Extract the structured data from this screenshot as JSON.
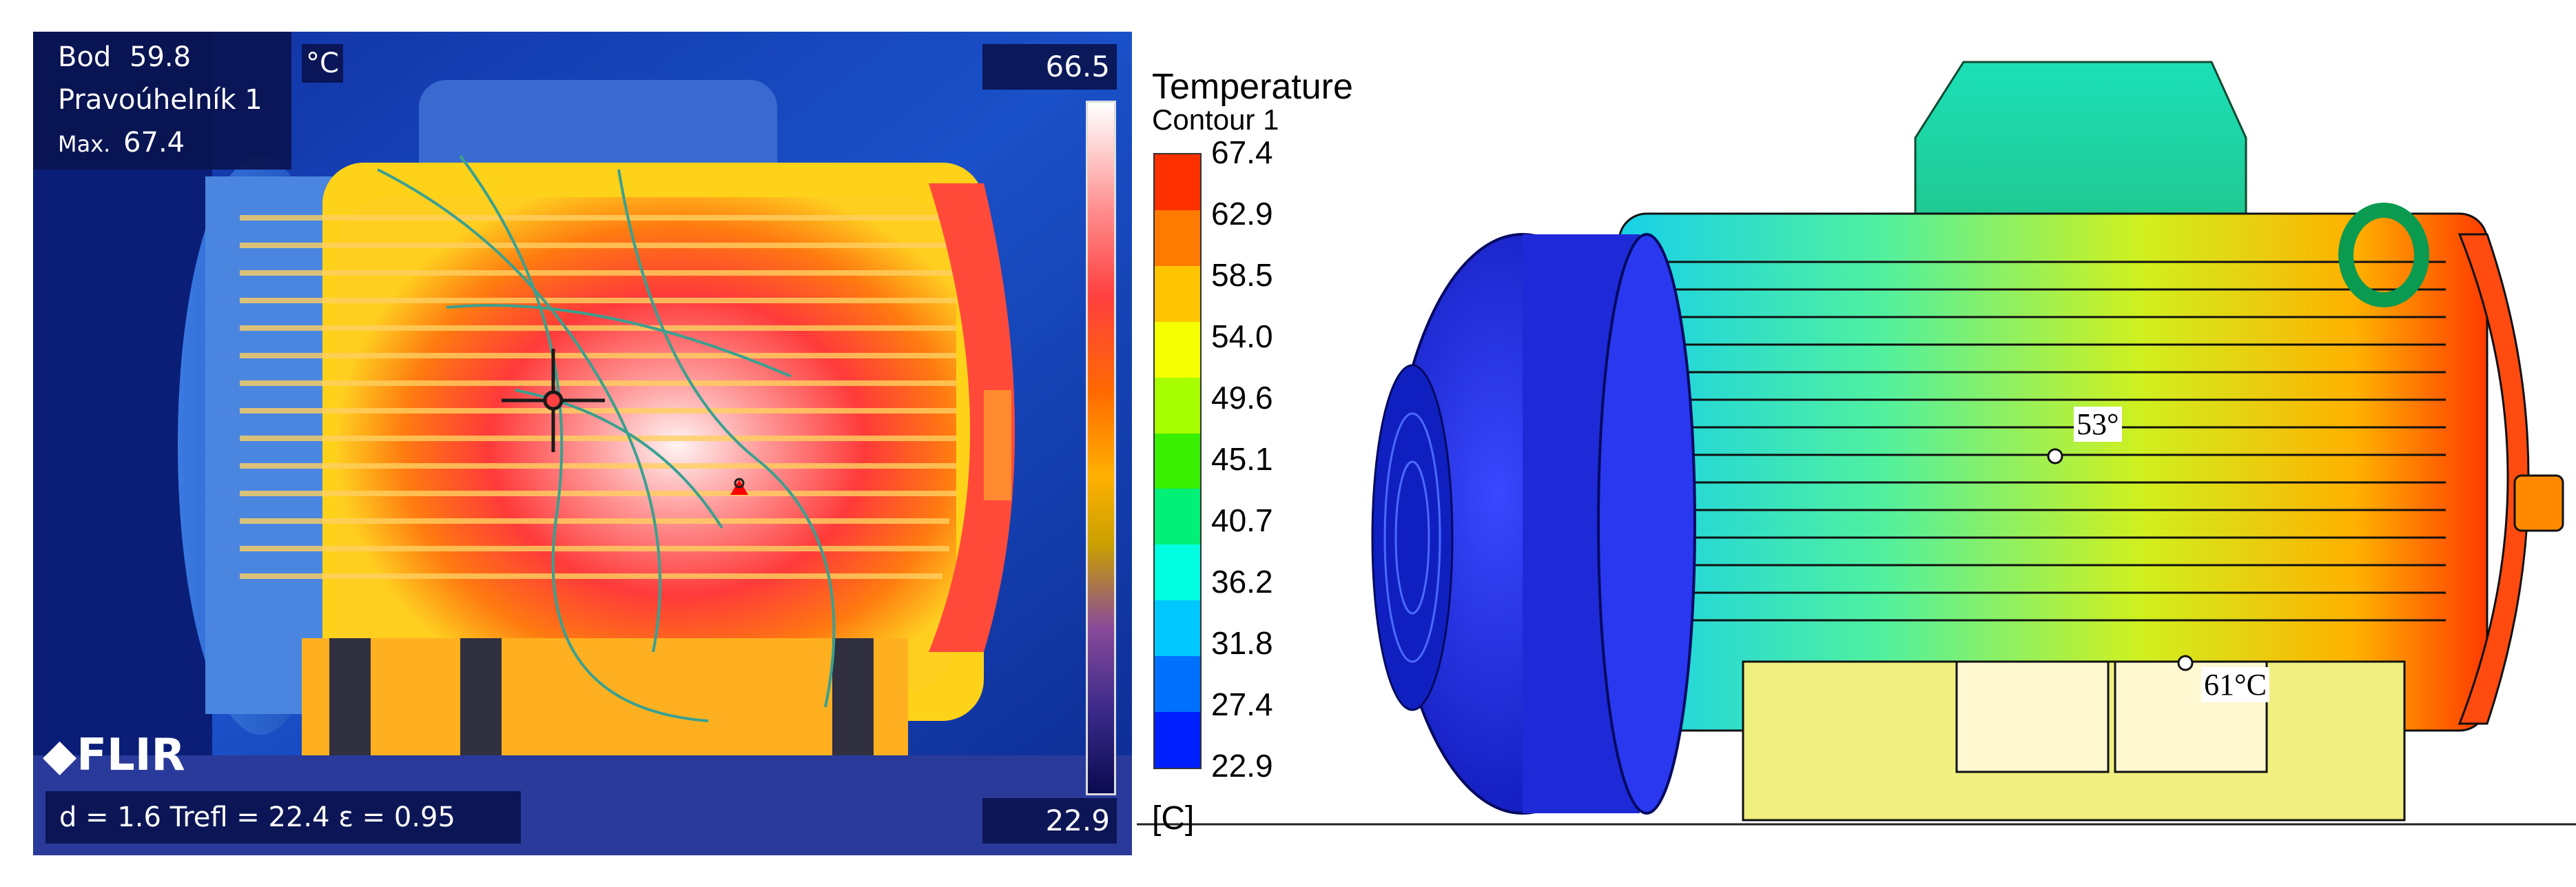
{
  "thermal": {
    "point_label": "Bod",
    "point_value": "59.8",
    "rect_label": "Pravoúhelník 1",
    "max_label": "Max.",
    "max_value": "67.4",
    "unit": "°C",
    "scale_max": "66.5",
    "scale_min": "22.9",
    "params": "d = 1.6  Trefl = 22.4  ε = 0.95",
    "brand": "FLIR"
  },
  "simulation": {
    "legend_title": "Temperature",
    "legend_subtitle": "Contour 1",
    "legend_unit": "[C]",
    "legend_ticks": [
      "67.4",
      "62.9",
      "58.5",
      "54.0",
      "49.6",
      "45.1",
      "40.7",
      "36.2",
      "31.8",
      "27.4",
      "22.9"
    ],
    "legend_colors": [
      "#ff3000",
      "#ff7a00",
      "#ffc400",
      "#f4ff00",
      "#a8ff00",
      "#38f000",
      "#00f078",
      "#00ffe0",
      "#00c8ff",
      "#0070ff",
      "#0020ff"
    ],
    "annotation_top": "53°",
    "annotation_bottom": "61°C"
  }
}
